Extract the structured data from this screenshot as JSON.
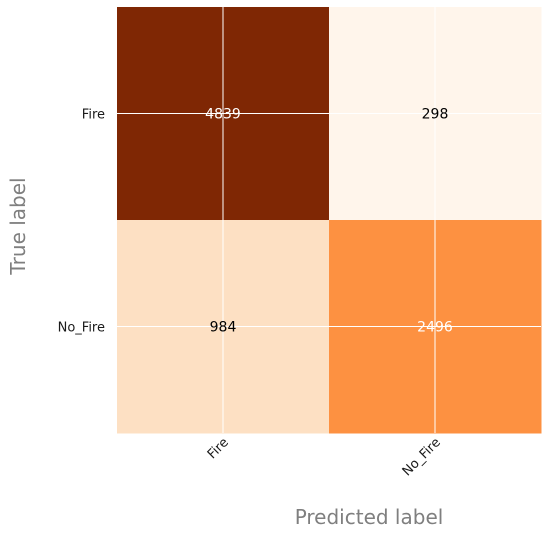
{
  "chart_data": {
    "type": "heatmap",
    "title": "",
    "xlabel": "Predicted label",
    "ylabel": "True label",
    "x_categories": [
      "Fire",
      "No_Fire"
    ],
    "y_categories": [
      "Fire",
      "No_Fire"
    ],
    "values": [
      [
        4839,
        298
      ],
      [
        984,
        2496
      ]
    ],
    "colormap": "Oranges",
    "colors": {
      "cells": [
        [
          "#7f2704",
          "#fff5eb"
        ],
        [
          "#fde0c3",
          "#fd9141"
        ]
      ],
      "cell_text": [
        [
          "#ffffff",
          "#000000"
        ],
        [
          "#000000",
          "#ffffff"
        ]
      ],
      "gridline": "#ffffff",
      "axis_label": "#7f7f7f"
    },
    "grid": true
  }
}
